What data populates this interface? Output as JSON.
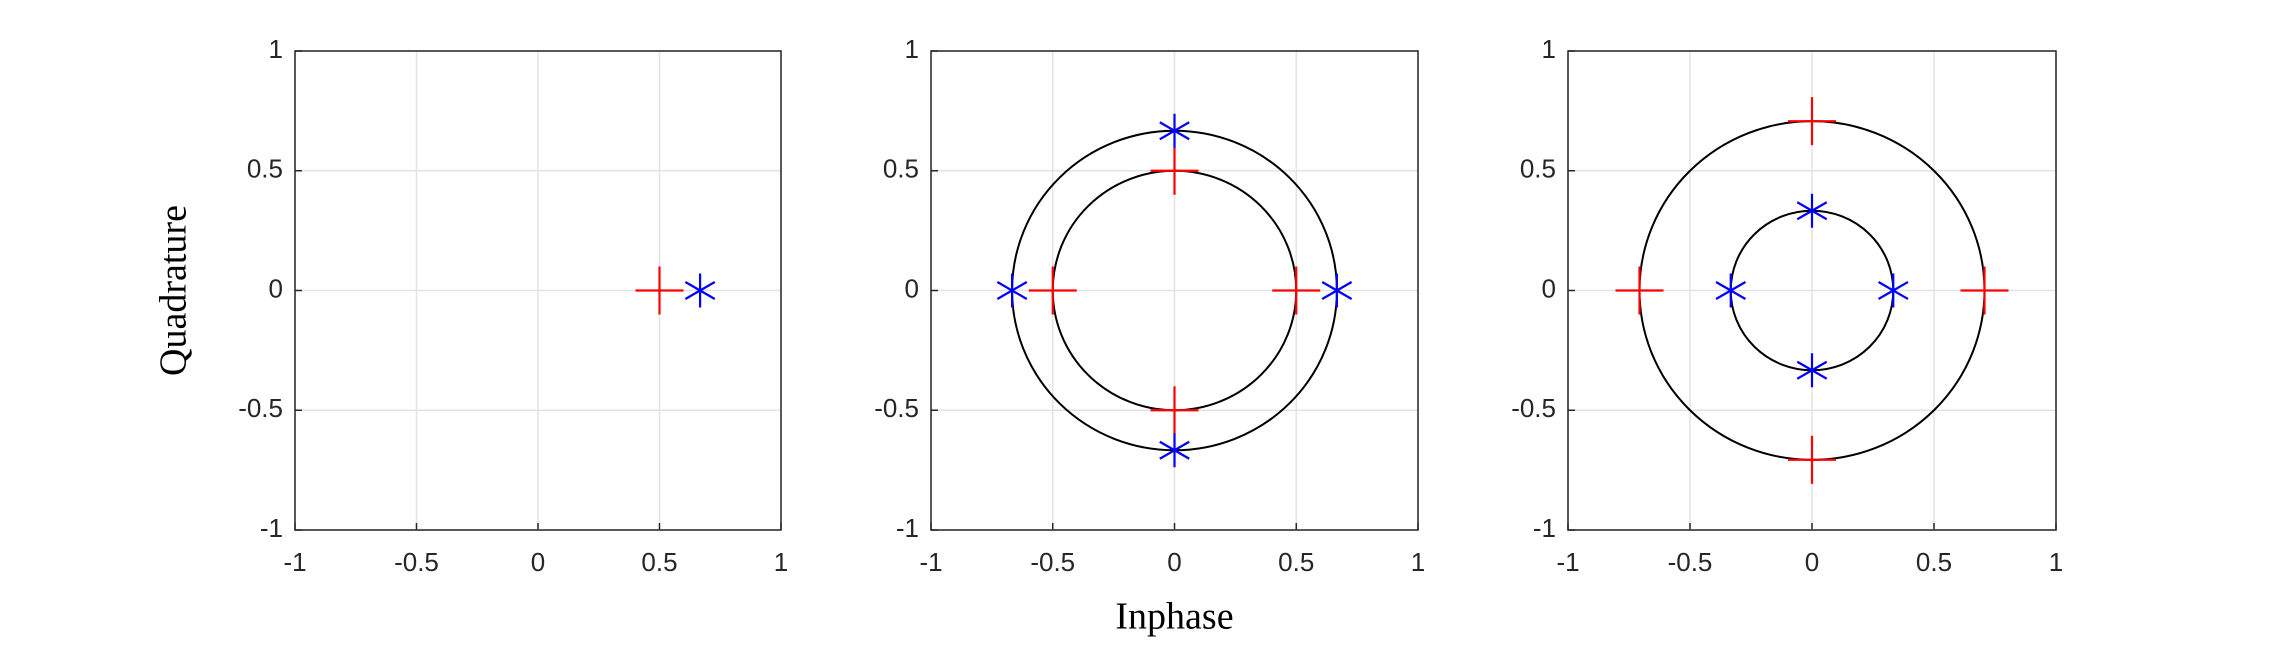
{
  "chart_data": [
    {
      "type": "scatter",
      "ylabel": "Quadrature",
      "xlim": [
        -1,
        1
      ],
      "ylim": [
        -1,
        1
      ],
      "xticks": [
        -1,
        -0.5,
        0,
        0.5,
        1
      ],
      "yticks": [
        -1,
        -0.5,
        0,
        0.5,
        1
      ],
      "grid": true,
      "circles": [],
      "series": [
        {
          "color": "#ff0000",
          "marker": "+",
          "x": [
            0.5
          ],
          "y": [
            0
          ]
        },
        {
          "color": "#0000ff",
          "marker": "*",
          "x": [
            0.667
          ],
          "y": [
            0
          ]
        }
      ]
    },
    {
      "type": "scatter",
      "xlabel": "Inphase",
      "xlim": [
        -1,
        1
      ],
      "ylim": [
        -1,
        1
      ],
      "xticks": [
        -1,
        -0.5,
        0,
        0.5,
        1
      ],
      "yticks": [
        -1,
        -0.5,
        0,
        0.5,
        1
      ],
      "grid": true,
      "circles": [
        0.5,
        0.667
      ],
      "series": [
        {
          "color": "#ff0000",
          "marker": "+",
          "x": [
            0.5,
            0,
            -0.5,
            0
          ],
          "y": [
            0,
            0.5,
            0,
            -0.5
          ]
        },
        {
          "color": "#0000ff",
          "marker": "*",
          "x": [
            0.667,
            0,
            -0.667,
            0
          ],
          "y": [
            0,
            0.667,
            0,
            -0.667
          ]
        }
      ]
    },
    {
      "type": "scatter",
      "xlim": [
        -1,
        1
      ],
      "ylim": [
        -1,
        1
      ],
      "xticks": [
        -1,
        -0.5,
        0,
        0.5,
        1
      ],
      "yticks": [
        -1,
        -0.5,
        0,
        0.5,
        1
      ],
      "grid": true,
      "circles": [
        0.707,
        0.333
      ],
      "series": [
        {
          "color": "#ff0000",
          "marker": "+",
          "x": [
            0.707,
            0,
            -0.707,
            0
          ],
          "y": [
            0,
            0.707,
            0,
            -0.707
          ]
        },
        {
          "color": "#0000ff",
          "marker": "*",
          "x": [
            0.333,
            0,
            -0.333,
            0
          ],
          "y": [
            0,
            0.333,
            0,
            -0.333
          ]
        }
      ]
    }
  ]
}
